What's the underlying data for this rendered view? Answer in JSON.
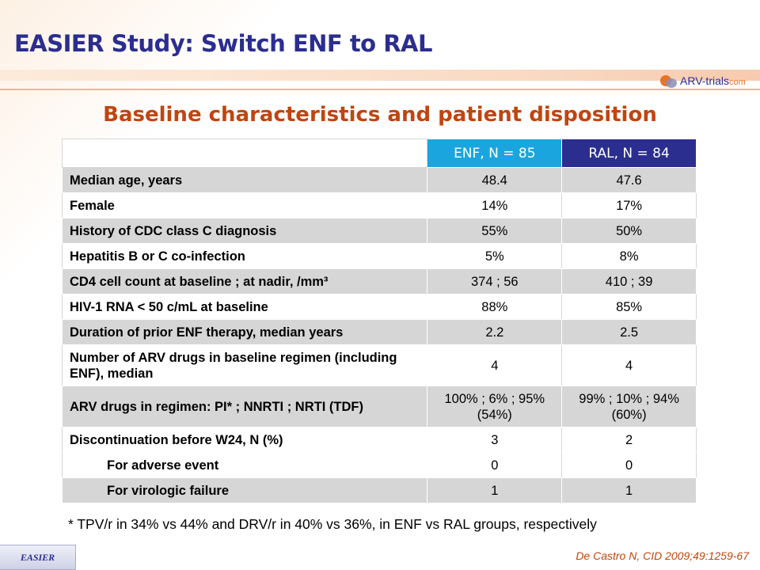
{
  "slide": {
    "title": "EASIER Study: Switch ENF to RAL",
    "subtitle": "Baseline characteristics and patient disposition",
    "logo": {
      "main": "ARV-trials",
      "suffix": "com"
    },
    "footnote": "* TPV/r in 34% vs 44% and DRV/r in 40% vs 36%, in ENF vs RAL groups, respectively",
    "citation": "De Castro N, CID 2009;49:1259-67",
    "study_tag": "EASIER"
  },
  "table": {
    "headers": [
      "",
      "ENF, N = 85",
      "RAL, N = 84"
    ],
    "header_colors": {
      "enf": "#1aa5df",
      "ral": "#2b2d8f"
    },
    "rows": [
      {
        "label": "Median age, years",
        "enf": "48.4",
        "ral": "47.6"
      },
      {
        "label": "Female",
        "enf": "14%",
        "ral": "17%"
      },
      {
        "label": "History of CDC class C diagnosis",
        "enf": "55%",
        "ral": "50%"
      },
      {
        "label": "Hepatitis B or C co-infection",
        "enf": "5%",
        "ral": "8%"
      },
      {
        "label": "CD4 cell count at baseline ; at nadir, /mm³",
        "enf": "374 ; 56",
        "ral": "410 ; 39"
      },
      {
        "label": "HIV-1 RNA < 50 c/mL at baseline",
        "enf": "88%",
        "ral": "85%"
      },
      {
        "label": "Duration of prior ENF therapy, median years",
        "enf": "2.2",
        "ral": "2.5"
      },
      {
        "label": "Number of ARV drugs in baseline regimen (including ENF), median",
        "enf": "4",
        "ral": "4"
      },
      {
        "label": "ARV drugs in regimen: PI* ; NNRTI ; NRTI (TDF)",
        "enf": "100% ; 6% ; 95% (54%)",
        "ral": "99% ; 10% ; 94% (60%)"
      },
      {
        "label": "Discontinuation before W24, N (%)",
        "enf": "3",
        "ral": "2"
      },
      {
        "label": "For adverse event",
        "enf": "0",
        "ral": "0"
      },
      {
        "label": "For virologic failure",
        "enf": "1",
        "ral": "1"
      }
    ]
  }
}
